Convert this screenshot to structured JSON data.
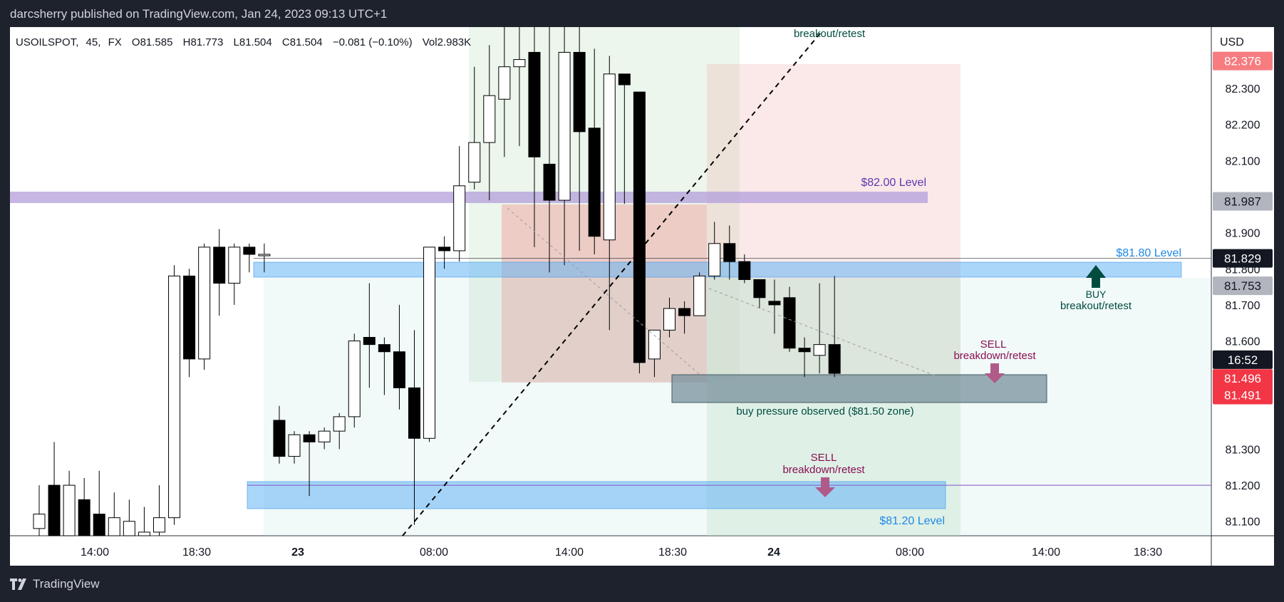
{
  "header": {
    "publisher": "darcsherry published on TradingView.com, Jan 24, 2023 09:13 UTC+1"
  },
  "footer": {
    "brand": "TradingView"
  },
  "legend": {
    "symbol": "USOILSPOT,",
    "interval": "45,",
    "exchange": "FX",
    "open": "O81.585",
    "high": "H81.773",
    "low": "L81.504",
    "close": "C81.504",
    "change": "−0.081 (−0.10%)",
    "volume": "Vol2.983K"
  },
  "colors": {
    "bull": "#ffffff",
    "bear": "#000000",
    "purple_zone": "#b39ddb",
    "blue_zone": "#64b5f6",
    "gray_zone": "#78909c",
    "red_box": "#ef9a9a",
    "green_box": "#c8e6c9",
    "sell_arrow": "#b05a8a",
    "buy_arrow": "#004d40"
  },
  "chart_data": {
    "type": "candlestick",
    "currency": "USD",
    "ylim": [
      81.06,
      82.47
    ],
    "y_ticks": [
      "82.300",
      "82.200",
      "82.100",
      "81.900",
      "81.800",
      "81.700",
      "81.600",
      "81.300",
      "81.200",
      "81.100"
    ],
    "x_ticks": [
      "14:00",
      "18:30",
      "23",
      "08:00",
      "14:00",
      "18:30",
      "24",
      "08:00",
      "14:00",
      "18:30"
    ],
    "price_tags": [
      {
        "value": "82.376",
        "price": 82.376,
        "bg": "#f77c80",
        "fg": "#ffffff"
      },
      {
        "value": "81.987",
        "price": 81.987,
        "bg": "#b2b5be",
        "fg": "#131722"
      },
      {
        "value": "81.829",
        "price": 81.829,
        "bg": "#131722",
        "fg": "#ffffff"
      },
      {
        "value": "81.753",
        "price": 81.753,
        "bg": "#b2b5be",
        "fg": "#131722"
      },
      {
        "value": "16:52",
        "price": 81.548,
        "bg": "#131722",
        "fg": "#ffffff"
      },
      {
        "value": "81.496",
        "price": 81.496,
        "bg": "#f23645",
        "fg": "#ffffff"
      },
      {
        "value": "81.491",
        "price": 81.45,
        "bg": "#f23645",
        "fg": "#ffffff"
      }
    ],
    "candles": [
      [
        81.08,
        81.12,
        81.06,
        81.2
      ],
      [
        81.2,
        81.06,
        81.06,
        81.32
      ],
      [
        81.06,
        81.2,
        81.06,
        81.24
      ],
      [
        81.16,
        81.06,
        81.06,
        81.22
      ],
      [
        81.12,
        81.06,
        81.06,
        81.24
      ],
      [
        81.06,
        81.11,
        81.06,
        81.18
      ],
      [
        81.06,
        81.1,
        81.06,
        81.16
      ],
      [
        81.06,
        81.07,
        81.06,
        81.14
      ],
      [
        81.07,
        81.11,
        81.06,
        81.2
      ],
      [
        81.11,
        81.78,
        81.09,
        81.81
      ],
      [
        81.78,
        81.55,
        81.5,
        81.8
      ],
      [
        81.55,
        81.86,
        81.52,
        81.87
      ],
      [
        81.86,
        81.76,
        81.67,
        81.91
      ],
      [
        81.76,
        81.86,
        81.7,
        81.87
      ],
      [
        81.86,
        81.84,
        81.79,
        81.87
      ],
      [
        81.84,
        81.84,
        81.79,
        81.87
      ],
      [
        81.38,
        81.28,
        81.26,
        81.42
      ],
      [
        81.28,
        81.34,
        81.26,
        81.35
      ],
      [
        81.34,
        81.32,
        81.17,
        81.35
      ],
      [
        81.32,
        81.35,
        81.3,
        81.36
      ],
      [
        81.35,
        81.39,
        81.3,
        81.4
      ],
      [
        81.39,
        81.6,
        81.36,
        81.62
      ],
      [
        81.61,
        81.59,
        81.47,
        81.76
      ],
      [
        81.59,
        81.57,
        81.45,
        81.61
      ],
      [
        81.57,
        81.47,
        81.41,
        81.7
      ],
      [
        81.47,
        81.33,
        81.09,
        81.63
      ],
      [
        81.33,
        81.86,
        81.32,
        81.86
      ],
      [
        81.86,
        81.85,
        81.8,
        81.89
      ],
      [
        81.85,
        82.03,
        81.82,
        82.14
      ],
      [
        82.04,
        82.15,
        82.02,
        82.36
      ],
      [
        82.15,
        82.28,
        81.99,
        82.42
      ],
      [
        82.27,
        82.36,
        82.11,
        82.47
      ],
      [
        82.36,
        82.38,
        82.14,
        82.47
      ],
      [
        82.4,
        82.11,
        81.86,
        82.47
      ],
      [
        82.09,
        81.99,
        81.79,
        82.47
      ],
      [
        81.99,
        82.4,
        81.81,
        82.47
      ],
      [
        82.4,
        82.18,
        81.85,
        82.47
      ],
      [
        82.19,
        81.89,
        81.84,
        82.41
      ],
      [
        81.88,
        82.34,
        81.63,
        82.39
      ],
      [
        82.34,
        82.31,
        81.98,
        82.34
      ],
      [
        82.29,
        81.54,
        81.51,
        82.29
      ],
      [
        81.55,
        81.63,
        81.5,
        81.63
      ],
      [
        81.63,
        81.69,
        81.61,
        81.72
      ],
      [
        81.69,
        81.67,
        81.62,
        81.71
      ],
      [
        81.67,
        81.78,
        81.67,
        81.79
      ],
      [
        81.78,
        81.87,
        81.77,
        81.93
      ],
      [
        81.87,
        81.82,
        81.77,
        81.92
      ],
      [
        81.82,
        81.77,
        81.76,
        81.84
      ],
      [
        81.77,
        81.72,
        81.69,
        81.77
      ],
      [
        81.71,
        81.7,
        81.62,
        81.77
      ],
      [
        81.72,
        81.58,
        81.57,
        81.75
      ],
      [
        81.58,
        81.57,
        81.5,
        81.61
      ],
      [
        81.56,
        81.59,
        81.51,
        81.76
      ],
      [
        81.59,
        81.51,
        81.5,
        81.78
      ]
    ],
    "annotations": {
      "breakout_top": "breakout/retest",
      "level_82": "$82.00 Level",
      "level_8180": "$81.80 Level",
      "level_8120": "$81.20 Level",
      "buy": "BUY",
      "buy_sub": "breakout/retest",
      "sell_right": "SELL",
      "sell_right_sub": "breakdown/retest",
      "sell_bottom": "SELL",
      "sell_bottom_sub": "breakdown/retest",
      "buy_pressure": "buy pressure observed ($81.50 zone)"
    }
  }
}
